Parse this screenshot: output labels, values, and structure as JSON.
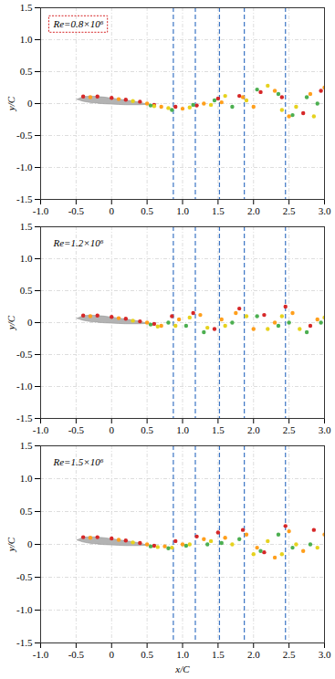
{
  "chart_data": [
    {
      "type": "scatter",
      "annotation": "Re=0.8×10⁶",
      "ylabel": "y/C",
      "xlim": [
        -1,
        3
      ],
      "ylim": [
        -1.5,
        1.5
      ],
      "xticks": [
        {
          "value": -1,
          "label": "-1.0"
        },
        -0.5,
        0,
        0.5,
        {
          "value": 1,
          "label": "1.0"
        },
        1.5,
        {
          "value": 2,
          "label": "2.0"
        },
        2.5,
        {
          "value": 3,
          "label": "3.0"
        }
      ],
      "yticks": [
        -1.5,
        {
          "value": -1,
          "label": "-1.0"
        },
        -0.5,
        0,
        0.5,
        {
          "value": 1,
          "label": "1.0"
        },
        1.5
      ],
      "grid": true,
      "reference_lines": {
        "x": [
          0.87,
          1.18,
          1.52,
          1.87,
          2.45
        ],
        "color": "#3b75c4",
        "line_style": "dashed"
      },
      "airfoil": {
        "x": [
          -0.48,
          -0.4,
          -0.3,
          -0.2,
          -0.1,
          0,
          0.1,
          0.2,
          0.3,
          0.4,
          0.5
        ],
        "upper": [
          0.06,
          0.1,
          0.11,
          0.105,
          0.095,
          0.08,
          0.065,
          0.05,
          0.035,
          0.015,
          -0.015
        ],
        "lower": [
          0.06,
          0.03,
          0.01,
          0.0,
          -0.01,
          -0.015,
          -0.02,
          -0.025,
          -0.025,
          -0.025,
          -0.02
        ],
        "color": "#b3b3b3"
      },
      "series": [
        {
          "color": "#d62728",
          "x": [
            -0.4,
            -0.2,
            0,
            0.2,
            0.4,
            0.6,
            0.9,
            1.2,
            1.5,
            1.8,
            2.1,
            2.4,
            2.7,
            2.95
          ],
          "y": [
            0.11,
            0.11,
            0.09,
            0.06,
            0.03,
            -0.02,
            -0.05,
            -0.03,
            0.08,
            0.12,
            0.18,
            0.1,
            -0.15,
            0.2
          ]
        },
        {
          "color": "#ff9f1c",
          "x": [
            -0.3,
            0.1,
            0.5,
            0.7,
            1.0,
            1.3,
            1.55,
            1.85,
            2.0,
            2.3,
            2.5,
            2.8,
            3.0
          ],
          "y": [
            0.1,
            0.07,
            0.0,
            -0.05,
            -0.08,
            0.0,
            0.02,
            0.1,
            -0.05,
            0.2,
            -0.2,
            0.15,
            0.25
          ]
        },
        {
          "color": "#e6d21e",
          "x": [
            0.3,
            0.6,
            0.8,
            1.1,
            1.4,
            1.6,
            1.9,
            2.2,
            2.4,
            2.6,
            2.85
          ],
          "y": [
            0.04,
            -0.04,
            -0.07,
            -0.06,
            -0.02,
            0.12,
            0.05,
            0.28,
            -0.1,
            -0.05,
            -0.2
          ]
        },
        {
          "color": "#4caf50",
          "x": [
            0.55,
            0.85,
            1.15,
            1.45,
            1.7,
            2.05,
            2.35,
            2.55,
            2.75,
            2.9
          ],
          "y": [
            -0.03,
            -0.1,
            -0.02,
            0.05,
            -0.05,
            0.22,
            0.15,
            -0.18,
            0.1,
            0.0
          ]
        }
      ]
    },
    {
      "type": "scatter",
      "annotation": "Re=1.2×10⁶",
      "ylabel": "y/C",
      "xlim": [
        -1,
        3
      ],
      "ylim": [
        -1.5,
        1.5
      ],
      "xticks": [
        {
          "value": -1,
          "label": "-1.0"
        },
        -0.5,
        0,
        0.5,
        {
          "value": 1,
          "label": "1.0"
        },
        1.5,
        {
          "value": 2,
          "label": "2.0"
        },
        2.5,
        {
          "value": 3,
          "label": "3.0"
        }
      ],
      "yticks": [
        -1.5,
        {
          "value": -1,
          "label": "-1.0"
        },
        -0.5,
        0,
        0.5,
        {
          "value": 1,
          "label": "1.0"
        },
        1.5
      ],
      "grid": true,
      "reference_lines": {
        "x": [
          0.87,
          1.18,
          1.52,
          1.87,
          2.45
        ],
        "color": "#3b75c4",
        "line_style": "dashed"
      },
      "airfoil": {
        "x": [
          -0.48,
          -0.4,
          -0.3,
          -0.2,
          -0.1,
          0,
          0.1,
          0.2,
          0.3,
          0.4,
          0.5
        ],
        "upper": [
          0.06,
          0.1,
          0.11,
          0.105,
          0.095,
          0.08,
          0.065,
          0.05,
          0.035,
          0.015,
          -0.015
        ],
        "lower": [
          0.06,
          0.03,
          0.01,
          0.0,
          -0.01,
          -0.015,
          -0.02,
          -0.025,
          -0.025,
          -0.025,
          -0.02
        ],
        "color": "#b3b3b3"
      },
      "series": [
        {
          "color": "#d62728",
          "x": [
            -0.4,
            -0.2,
            0,
            0.2,
            0.4,
            0.6,
            0.85,
            1.15,
            1.45,
            1.8,
            2.15,
            2.45,
            2.8
          ],
          "y": [
            0.11,
            0.11,
            0.09,
            0.06,
            0.02,
            -0.02,
            0.1,
            0.15,
            -0.1,
            0.22,
            0.12,
            0.25,
            -0.05
          ]
        },
        {
          "color": "#ff9f1c",
          "x": [
            -0.3,
            0.1,
            0.5,
            0.7,
            0.95,
            1.25,
            1.55,
            1.75,
            2.0,
            2.3,
            2.55,
            2.9
          ],
          "y": [
            0.1,
            0.07,
            0.0,
            -0.05,
            0.05,
            0.12,
            0.05,
            0.15,
            -0.1,
            0.0,
            0.15,
            0.05
          ]
        },
        {
          "color": "#e6d21e",
          "x": [
            0.3,
            0.65,
            0.9,
            1.1,
            1.35,
            1.6,
            1.9,
            2.2,
            2.4,
            2.65,
            3.0
          ],
          "y": [
            0.03,
            -0.06,
            -0.05,
            0.08,
            -0.08,
            -0.05,
            0.1,
            -0.1,
            0.1,
            -0.1,
            0.08
          ]
        },
        {
          "color": "#4caf50",
          "x": [
            0.55,
            0.8,
            1.05,
            1.3,
            1.7,
            2.05,
            2.35,
            2.5,
            2.75,
            2.95
          ],
          "y": [
            -0.03,
            0.0,
            -0.05,
            -0.15,
            0.0,
            0.1,
            -0.05,
            0.0,
            -0.15,
            0.0
          ]
        }
      ]
    },
    {
      "type": "scatter",
      "annotation": "Re=1.5×10⁶",
      "ylabel": "y/C",
      "xlabel": "x/C",
      "xlim": [
        -1,
        3
      ],
      "ylim": [
        -1.5,
        1.5
      ],
      "xticks": [
        {
          "value": -1,
          "label": "-1.0"
        },
        -0.5,
        0,
        0.5,
        {
          "value": 1,
          "label": "1.0"
        },
        1.5,
        {
          "value": 2,
          "label": "2.0"
        },
        2.5,
        {
          "value": 3,
          "label": "3.0"
        }
      ],
      "yticks": [
        -1.5,
        {
          "value": -1,
          "label": "-1.0"
        },
        -0.5,
        0,
        0.5,
        {
          "value": 1,
          "label": "1.0"
        },
        1.5
      ],
      "grid": true,
      "reference_lines": {
        "x": [
          0.87,
          1.18,
          1.52,
          1.87,
          2.45
        ],
        "color": "#3b75c4",
        "line_style": "dashed"
      },
      "airfoil": {
        "x": [
          -0.48,
          -0.4,
          -0.3,
          -0.2,
          -0.1,
          0,
          0.1,
          0.2,
          0.3,
          0.4,
          0.5
        ],
        "upper": [
          0.06,
          0.1,
          0.11,
          0.105,
          0.095,
          0.08,
          0.065,
          0.05,
          0.035,
          0.015,
          -0.015
        ],
        "lower": [
          0.06,
          0.03,
          0.01,
          0.0,
          -0.01,
          -0.015,
          -0.02,
          -0.025,
          -0.025,
          -0.025,
          -0.02
        ],
        "color": "#b3b3b3"
      },
      "series": [
        {
          "color": "#d62728",
          "x": [
            -0.4,
            -0.2,
            0,
            0.2,
            0.4,
            0.6,
            0.9,
            1.2,
            1.5,
            1.85,
            2.15,
            2.45,
            2.85
          ],
          "y": [
            0.11,
            0.11,
            0.09,
            0.06,
            0.02,
            -0.02,
            0.05,
            0.12,
            0.18,
            0.22,
            -0.12,
            0.28,
            0.22
          ]
        },
        {
          "color": "#ff9f1c",
          "x": [
            -0.3,
            0.1,
            0.5,
            0.75,
            1.0,
            1.3,
            1.6,
            1.9,
            2.05,
            2.3,
            2.5,
            2.7,
            3.0
          ],
          "y": [
            0.1,
            0.07,
            0.0,
            -0.03,
            0.0,
            0.08,
            0.1,
            0.15,
            -0.05,
            -0.2,
            0.2,
            -0.1,
            0.15
          ]
        },
        {
          "color": "#e6d21e",
          "x": [
            0.3,
            0.65,
            0.85,
            1.1,
            1.4,
            1.7,
            2.0,
            2.2,
            2.4,
            2.6,
            2.9
          ],
          "y": [
            0.03,
            -0.04,
            -0.05,
            0.0,
            0.05,
            0.0,
            -0.15,
            0.05,
            -0.15,
            0.0,
            -0.05
          ]
        },
        {
          "color": "#4caf50",
          "x": [
            0.55,
            0.8,
            1.05,
            1.35,
            1.55,
            1.8,
            2.1,
            2.35,
            2.55,
            2.8
          ],
          "y": [
            -0.03,
            -0.06,
            -0.02,
            0.0,
            0.02,
            0.08,
            -0.1,
            0.15,
            -0.05,
            0.0
          ]
        }
      ]
    }
  ]
}
